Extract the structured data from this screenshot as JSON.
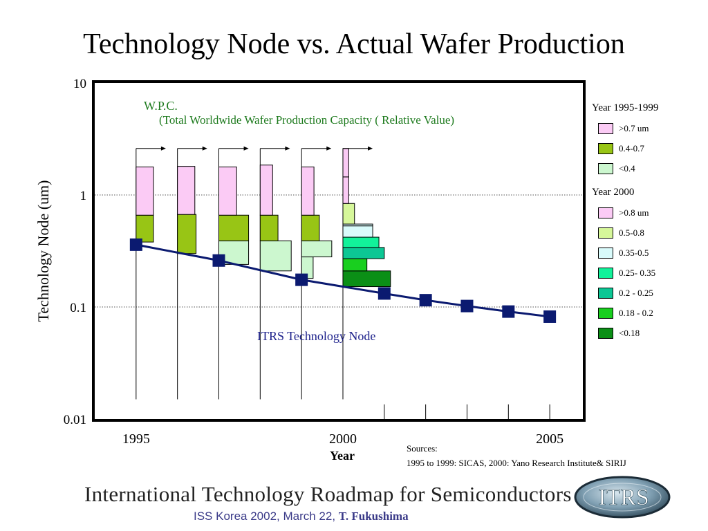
{
  "slide_title": "Technology Node vs. Actual Wafer Production",
  "chart_data": {
    "type": "scatter",
    "ylabel": "Technology Node (um)",
    "xlabel": "Year",
    "yscale": "log",
    "ylim": [
      0.01,
      10
    ],
    "xlim": [
      1994,
      2005.8
    ],
    "y_ticks": [
      "10",
      "1",
      "0.1",
      "0.01"
    ],
    "y_tick_values": [
      10,
      1,
      0.1,
      0.01
    ],
    "x_tick_labels": [
      "1995",
      "2000",
      "2005"
    ],
    "x_tick_values": [
      1995,
      2000,
      2005
    ],
    "grid_y": [
      1,
      0.1
    ],
    "itrs_series": {
      "name": "ITRS Technology Node",
      "color": "#0b1a70",
      "points": [
        {
          "x": 1995,
          "y": 0.36
        },
        {
          "x": 1997,
          "y": 0.26
        },
        {
          "x": 1999,
          "y": 0.175
        },
        {
          "x": 2001,
          "y": 0.132
        },
        {
          "x": 2002,
          "y": 0.115
        },
        {
          "x": 2003,
          "y": 0.102
        },
        {
          "x": 2004,
          "y": 0.091
        },
        {
          "x": 2005,
          "y": 0.082
        }
      ]
    },
    "wpc_annotation": {
      "line1": "W.P.C.",
      "line2": "(Total Worldwide Wafer Production Capacity ( Relative Value)"
    },
    "wpc_bars": [
      {
        "year": 1995,
        "segments": [
          {
            "range": "0.4-0.7",
            "ymin": 0.38,
            "ymax": 0.66,
            "width": 0.42
          },
          {
            "range": ">0.7 um",
            "ymin": 0.66,
            "ymax": 1.78,
            "width": 0.42
          }
        ]
      },
      {
        "year": 1996,
        "segments": [
          {
            "range": "0.4-0.7",
            "ymin": 0.3,
            "ymax": 0.67,
            "width": 0.45
          },
          {
            "range": ">0.7 um",
            "ymin": 0.67,
            "ymax": 1.8,
            "width": 0.42
          }
        ]
      },
      {
        "year": 1997,
        "segments": [
          {
            "range": "<0.4",
            "ymin": 0.24,
            "ymax": 0.39,
            "width": 0.72
          },
          {
            "range": "0.4-0.7",
            "ymin": 0.39,
            "ymax": 0.66,
            "width": 0.72
          },
          {
            "range": ">0.7 um",
            "ymin": 0.66,
            "ymax": 1.78,
            "width": 0.43
          }
        ]
      },
      {
        "year": 1998,
        "segments": [
          {
            "range": "<0.4",
            "ymin": 0.21,
            "ymax": 0.39,
            "width": 0.75
          },
          {
            "range": "0.4-0.7",
            "ymin": 0.39,
            "ymax": 0.66,
            "width": 0.43
          },
          {
            "range": ">0.7 um",
            "ymin": 0.66,
            "ymax": 1.85,
            "width": 0.3
          }
        ]
      },
      {
        "year": 1999,
        "segments": [
          {
            "range": "<0.4",
            "ymin": 0.18,
            "ymax": 0.28,
            "width": 0.28
          },
          {
            "range": "<0.4",
            "ymin": 0.28,
            "ymax": 0.39,
            "width": 0.73
          },
          {
            "range": "0.4-0.7",
            "ymin": 0.39,
            "ymax": 0.66,
            "width": 0.43
          },
          {
            "range": ">0.7 um",
            "ymin": 0.66,
            "ymax": 1.78,
            "width": 0.3
          }
        ]
      }
    ],
    "wpc_bars_2000": {
      "year": 2000,
      "segments": [
        {
          "range": "<0.18",
          "ymin": 0.152,
          "ymax": 0.21,
          "width": 1.15
        },
        {
          "range": "0.18 - 0.2",
          "ymin": 0.21,
          "ymax": 0.27,
          "width": 0.58
        },
        {
          "range": "0.2 - 0.25",
          "ymin": 0.27,
          "ymax": 0.34,
          "width": 1.0
        },
        {
          "range": "0.25- 0.35",
          "ymin": 0.34,
          "ymax": 0.42,
          "width": 0.87
        },
        {
          "range": "0.35-0.5",
          "ymin": 0.42,
          "ymax": 0.53,
          "width": 0.72
        },
        {
          "range": "0.35-0.5",
          "ymin": 0.53,
          "ymax": 0.55,
          "width": 0.72
        },
        {
          "range": "0.5-0.8",
          "ymin": 0.55,
          "ymax": 0.84,
          "width": 0.28
        },
        {
          "range": ">0.8 um",
          "ymin": 0.84,
          "ymax": 1.45,
          "width": 0.14
        },
        {
          "range": ">0.8 um",
          "ymin": 1.45,
          "ymax": 2.6,
          "width": 0.14
        }
      ]
    },
    "legend_1995_1999": {
      "title": "Year 1995-1999",
      "items": [
        {
          "label": ">0.7 um",
          "color": "#fbcbf5"
        },
        {
          "label": "0.4-0.7",
          "color": "#98c515"
        },
        {
          "label": "<0.4",
          "color": "#ccf7cf"
        }
      ]
    },
    "legend_2000": {
      "title": "Year 2000",
      "items": [
        {
          "label": ">0.8 um",
          "color": "#fbcbf5"
        },
        {
          "label": "0.5-0.8",
          "color": "#d6f79a"
        },
        {
          "label": "0.35-0.5",
          "color": "#d9fbfb"
        },
        {
          "label": "0.25- 0.35",
          "color": "#12f29a"
        },
        {
          "label": "0.2 - 0.25",
          "color": "#0cc794"
        },
        {
          "label": "0.18 - 0.2",
          "color": "#19cf1f"
        },
        {
          "label": "<0.18",
          "color": "#0b8f16"
        }
      ]
    },
    "sources": {
      "label": "Sources:",
      "text": "1995 to 1999: SICAS, 2000: Yano Research Institute& SIRIJ"
    }
  },
  "footer": {
    "banner": "International Technology Roadmap for Semiconductors",
    "credit_sans": "ISS Korea 2002, March 22, ",
    "credit_serif": "T. Fukushima",
    "logo_text": "ITRS"
  }
}
